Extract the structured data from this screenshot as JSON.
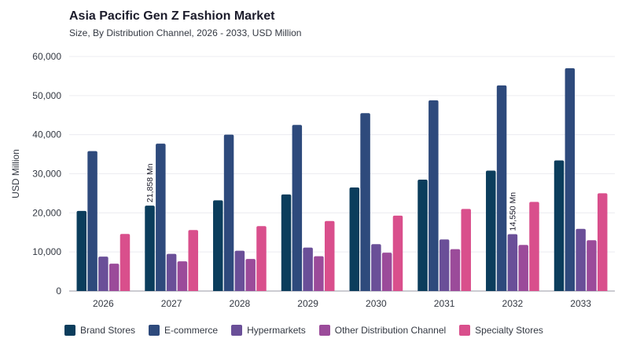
{
  "header": {
    "title": "Asia Pacific Gen Z Fashion Market",
    "subtitle": "Size, By Distribution Channel, 2026 - 2033, USD Million"
  },
  "chart_data": {
    "type": "bar",
    "ylabel": "USD Million",
    "xlabel": "",
    "ylim": [
      0,
      60000
    ],
    "yticks": [
      0,
      10000,
      20000,
      30000,
      40000,
      50000,
      60000
    ],
    "ytick_labels": [
      "0",
      "10,000",
      "20,000",
      "30,000",
      "40,000",
      "50,000",
      "60,000"
    ],
    "categories": [
      "2026",
      "2027",
      "2028",
      "2029",
      "2030",
      "2031",
      "2032",
      "2033"
    ],
    "grid": true,
    "legend_position": "bottom",
    "series": [
      {
        "name": "Brand Stores",
        "color": "#0b3d5c",
        "values": [
          20500,
          21858,
          23200,
          24700,
          26500,
          28500,
          30800,
          33400
        ]
      },
      {
        "name": "E-commerce",
        "color": "#2e4a7c",
        "values": [
          35800,
          37700,
          40000,
          42500,
          45500,
          48800,
          52600,
          57000
        ]
      },
      {
        "name": "Hypermarkets",
        "color": "#6a4f98",
        "values": [
          8800,
          9500,
          10300,
          11100,
          12000,
          13200,
          14550,
          15900
        ]
      },
      {
        "name": "Other Distribution Channel",
        "color": "#9b4b9a",
        "values": [
          7000,
          7600,
          8200,
          8900,
          9800,
          10700,
          11800,
          13000
        ]
      },
      {
        "name": "Specialty Stores",
        "color": "#d94f8c",
        "values": [
          14600,
          15600,
          16600,
          17900,
          19300,
          21000,
          22800,
          25000
        ]
      }
    ],
    "annotations": [
      {
        "text": "21,858 Mn",
        "category": "2027",
        "series": "Brand Stores"
      },
      {
        "text": "14,550 Mn",
        "category": "2032",
        "series": "Hypermarkets"
      }
    ]
  }
}
